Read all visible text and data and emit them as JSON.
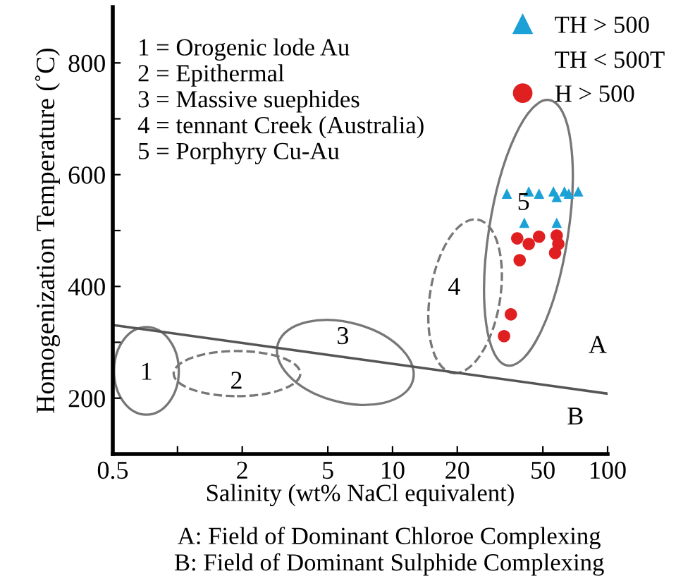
{
  "chart_data": {
    "type": "scatter",
    "xlabel": "Salinity (wt% NaCl equivalent)",
    "ylabel": "Homogenization Temperature (˚C)",
    "log": "x",
    "xlim": [
      0.5,
      100
    ],
    "ylim": [
      100,
      900
    ],
    "xticks": [
      0.5,
      {
        "value": 1,
        "label": null
      },
      2,
      5,
      10,
      20,
      50,
      100
    ],
    "yticks": [
      200,
      {
        "value": 300,
        "label": null
      },
      400,
      {
        "value": 500,
        "label": null
      },
      600,
      {
        "value": 700,
        "label": null
      },
      800
    ],
    "grid": false,
    "legend": "top right",
    "series": [
      {
        "name": "TH > 500",
        "color": "#1ba1d6",
        "marker": "triangle",
        "x": [
          34,
          43,
          48,
          56,
          58,
          63,
          66,
          73,
          41,
          58
        ],
        "values": [
          566,
          570,
          566,
          570,
          560,
          570,
          566,
          570,
          514,
          514
        ]
      },
      {
        "name": "H > 500",
        "color": "#e02020",
        "marker": "circle",
        "x": [
          38,
          43,
          48,
          58,
          59,
          57,
          39,
          35.5,
          33
        ],
        "values": [
          486,
          476,
          489,
          491,
          476,
          460,
          447,
          350,
          311
        ]
      },
      {
        "type": "line",
        "color": "#555555",
        "marker": "none",
        "line_style": "solid",
        "x": [
          0.5,
          100
        ],
        "values": [
          331,
          208
        ]
      }
    ],
    "annotations": [
      "TH < 500T",
      "1 = Orogenic lode Au",
      "2 = Epithermal",
      "3 = Massive suephides",
      "4 = tennant Creek (Australia)",
      "5 = Porphyry Cu-Au",
      "1",
      "2",
      "3",
      "4",
      "5",
      "A",
      "B",
      "A: Field of Dominant Chloroe Complexing",
      "B: Field of Dominant Sulphide Complexing"
    ]
  }
}
